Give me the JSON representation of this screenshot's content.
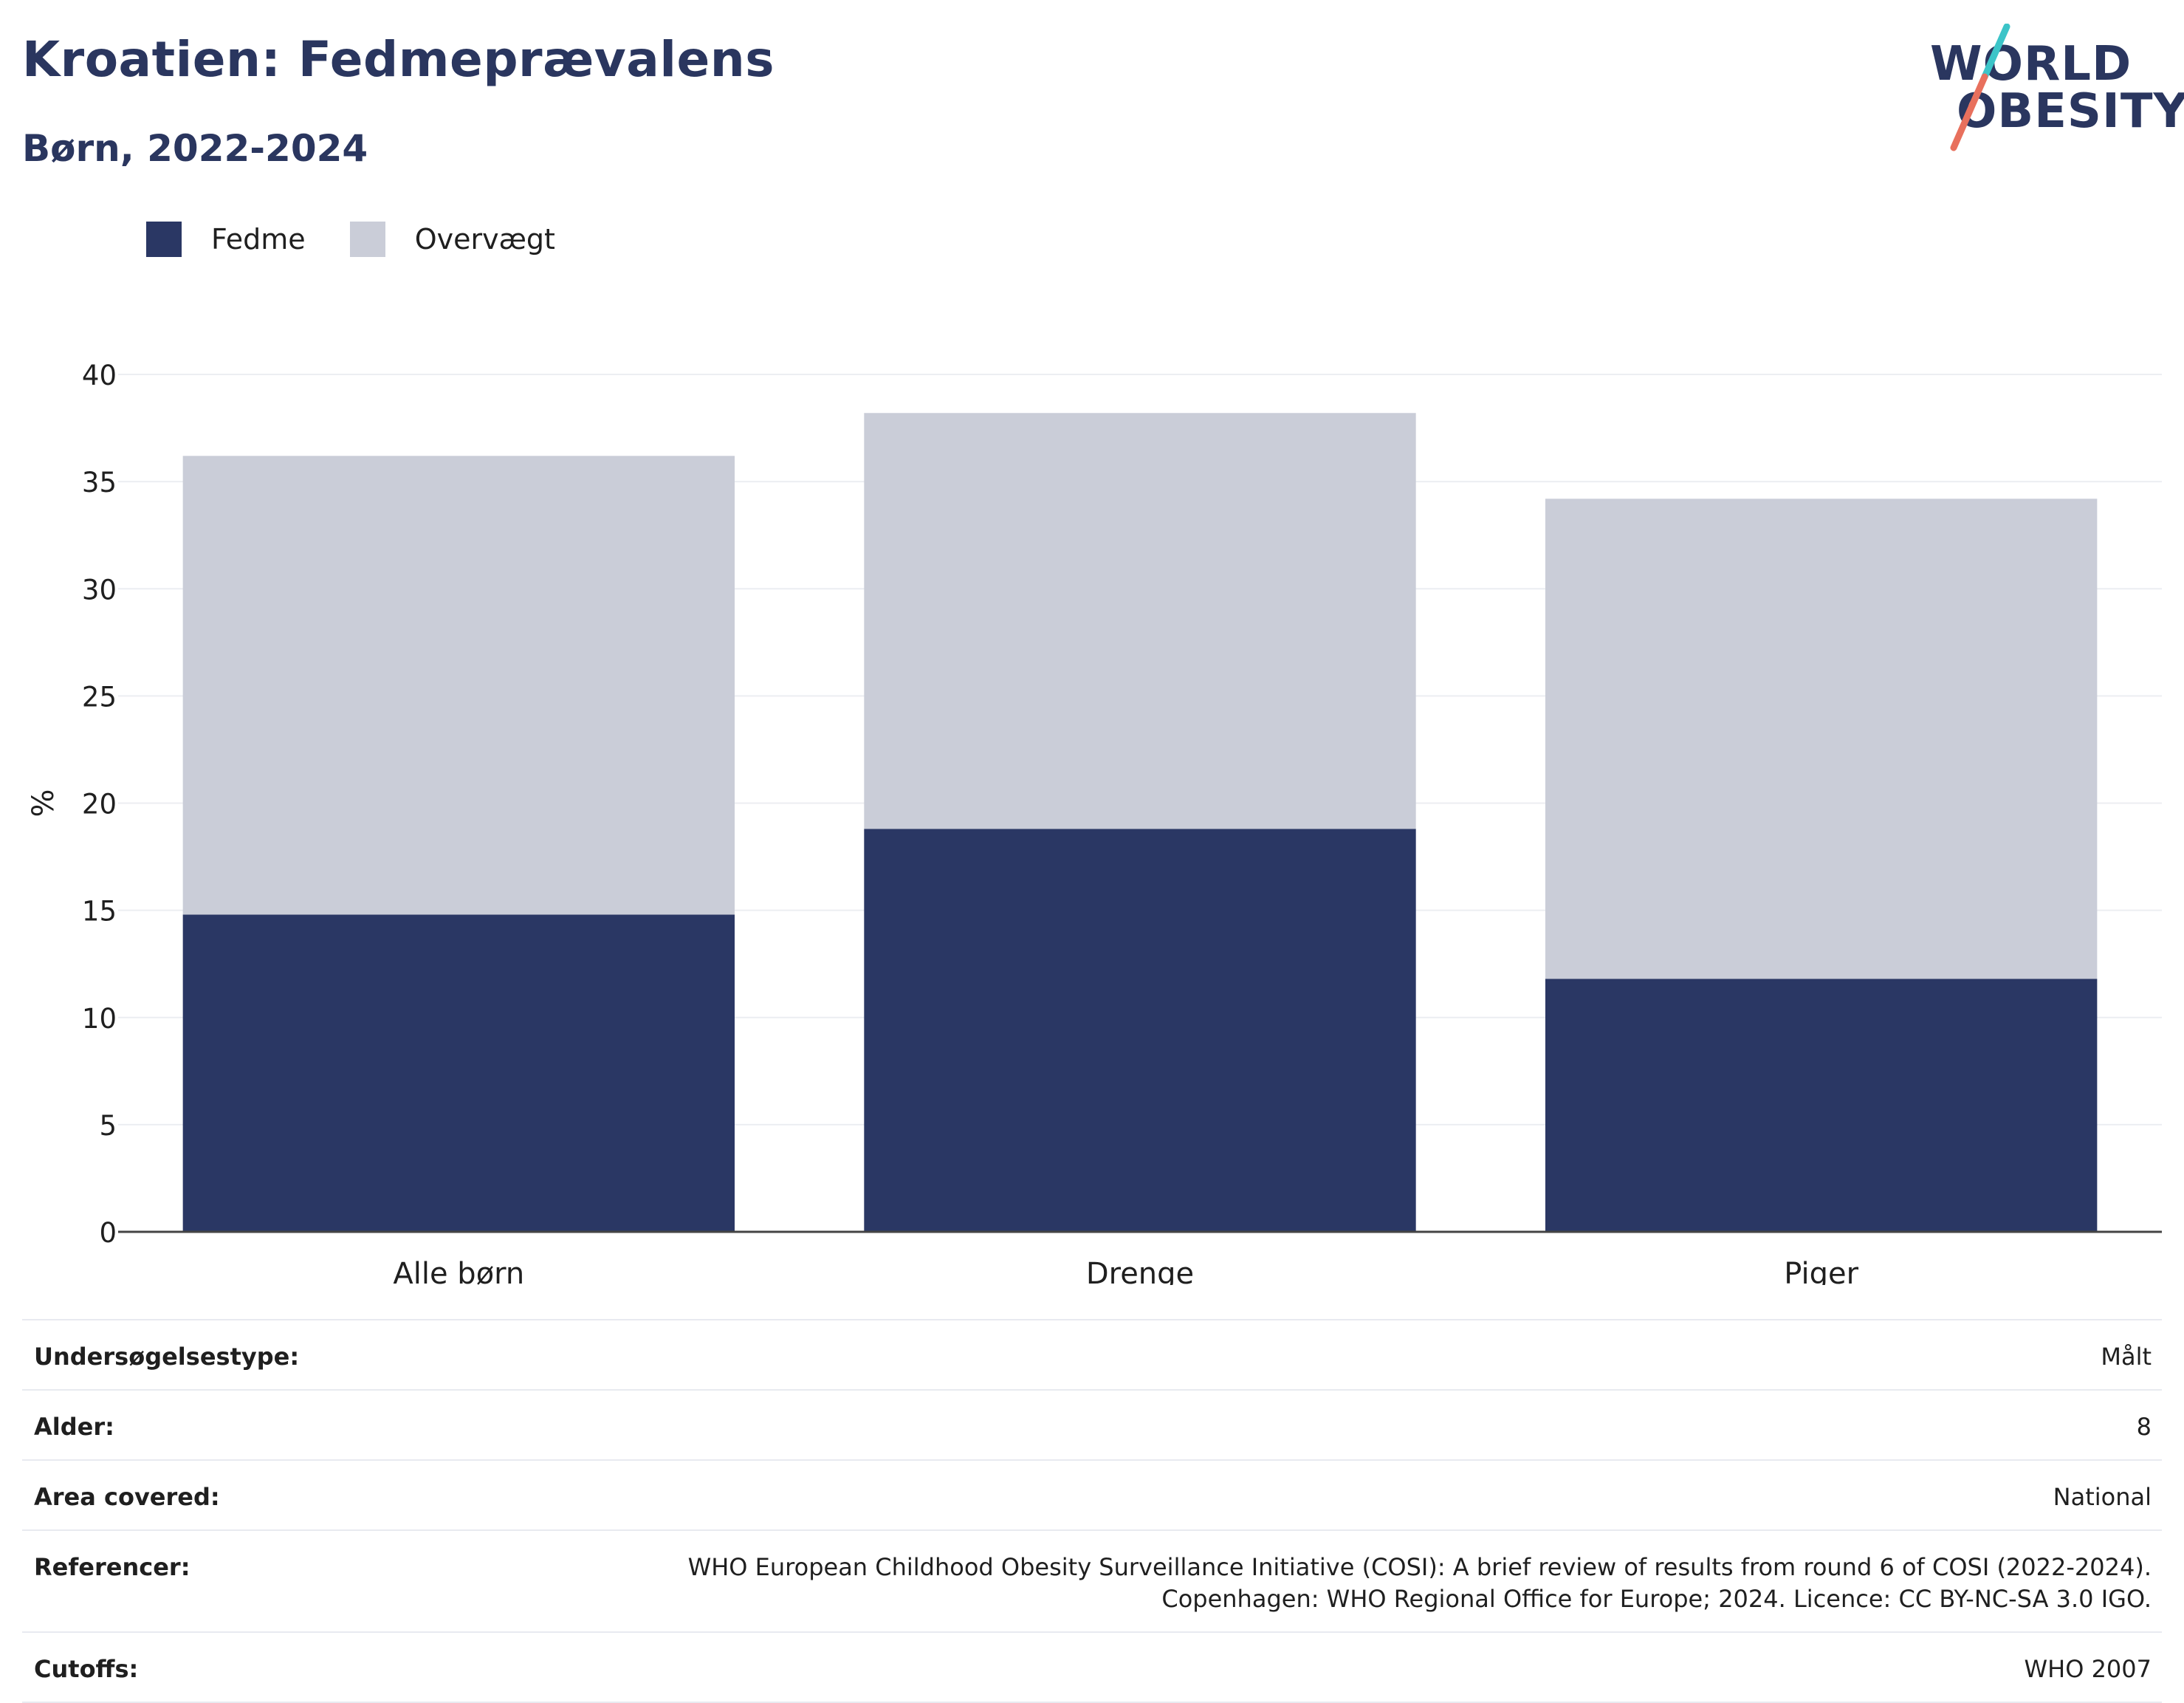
{
  "header": {
    "title": "Kroatien: Fedmeprævalens",
    "subtitle": "Børn, 2022-2024"
  },
  "logo": {
    "line1": "WORLD",
    "line2": "OBESITY",
    "colors": {
      "text": "#2a365f",
      "slash_top": "#3cc4c8",
      "slash_bottom": "#e8705d"
    }
  },
  "legend": [
    {
      "label": "Fedme",
      "color": "#2a3764"
    },
    {
      "label": "Overvægt",
      "color": "#cacdd8"
    }
  ],
  "chart_data": {
    "type": "bar",
    "stacked": true,
    "categories": [
      "Alle børn",
      "Drenge",
      "Piger"
    ],
    "series": [
      {
        "name": "Fedme",
        "color": "#2a3764",
        "values": [
          14.8,
          18.8,
          11.8
        ]
      },
      {
        "name": "Overvægt",
        "color": "#cacdd8",
        "values": [
          21.4,
          19.4,
          22.4
        ]
      }
    ],
    "ylabel": "%",
    "ylim": [
      0,
      40
    ],
    "yticks": [
      0,
      5,
      10,
      15,
      20,
      25,
      30,
      35,
      40
    ],
    "grid": true,
    "legend_position": "top-left"
  },
  "info": [
    {
      "key": "Undersøgelsestype:",
      "value": [
        "Målt"
      ]
    },
    {
      "key": "Alder:",
      "value": [
        "8"
      ]
    },
    {
      "key": "Area covered:",
      "value": [
        "National"
      ]
    },
    {
      "key": "Referencer:",
      "value": [
        "WHO European Childhood Obesity Surveillance Initiative (COSI): A brief review of results from round 6 of COSI (2022-2024).",
        "Copenhagen: WHO Regional Office for Europe; 2024. Licence: CC BY-NC-SA 3.0 IGO."
      ]
    },
    {
      "key": "Cutoffs:",
      "value": [
        "WHO 2007"
      ]
    }
  ]
}
